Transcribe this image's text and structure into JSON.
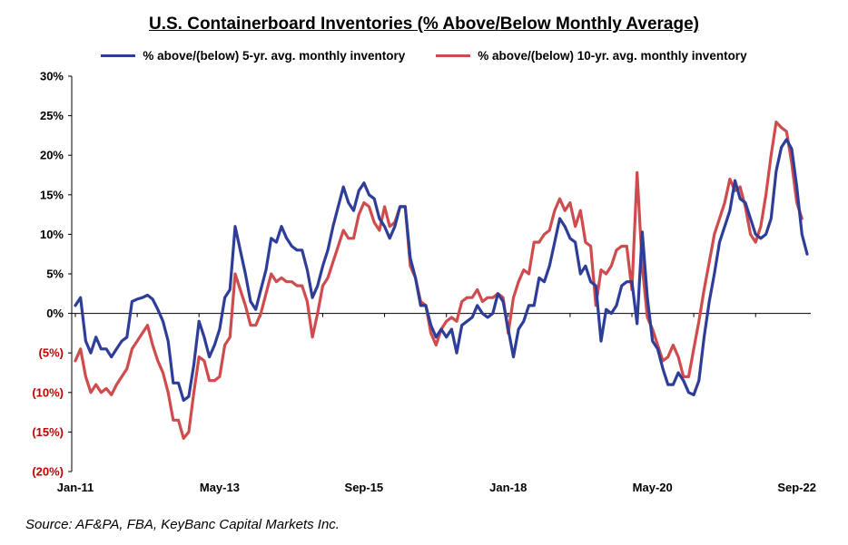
{
  "source": "Source: AF&PA, FBA, KeyBanc Capital Markets Inc.",
  "chart_data": {
    "type": "line",
    "title": "U.S. Containerboard Inventories (% Above/Below Monthly Average)",
    "xlabel": "",
    "ylabel": "",
    "ylim": [
      -20,
      30
    ],
    "yticks": [
      {
        "value": 30,
        "label": "30%"
      },
      {
        "value": 25,
        "label": "25%"
      },
      {
        "value": 20,
        "label": "20%"
      },
      {
        "value": 15,
        "label": "15%"
      },
      {
        "value": 10,
        "label": "10%"
      },
      {
        "value": 5,
        "label": "5%"
      },
      {
        "value": 0,
        "label": "0%"
      },
      {
        "value": -5,
        "label": "(5%)"
      },
      {
        "value": -10,
        "label": "(10%)"
      },
      {
        "value": -15,
        "label": "(15%)"
      },
      {
        "value": -20,
        "label": "(20%)"
      }
    ],
    "xticks": [
      {
        "index": 0,
        "label": "Jan-11"
      },
      {
        "index": 28,
        "label": "May-13"
      },
      {
        "index": 56,
        "label": "Sep-15"
      },
      {
        "index": 84,
        "label": "Jan-18"
      },
      {
        "index": 112,
        "label": "May-20"
      },
      {
        "index": 140,
        "label": "Sep-22"
      }
    ],
    "x_range": [
      "Jan-11",
      "Oct-22"
    ],
    "grid": false,
    "legend_position": "top",
    "negative_label_color": "#c00000",
    "series": [
      {
        "name": "% above/(below) 5-yr. avg. monthly inventory",
        "color": "#2e3d98",
        "values": [
          1,
          2,
          -3.5,
          -5,
          -3,
          -4.5,
          -4.5,
          -5.5,
          -4.5,
          -3.5,
          -3,
          1.5,
          1.8,
          2,
          2.3,
          1.8,
          0.5,
          -1,
          -3.5,
          -8.8,
          -8.8,
          -11,
          -10.5,
          -6.5,
          -1,
          -3,
          -5.5,
          -4,
          -2,
          2,
          3,
          11,
          8,
          5,
          1.5,
          0.5,
          3,
          5.5,
          9.5,
          9,
          11,
          9.5,
          8.5,
          8,
          8,
          5.5,
          2,
          3.5,
          6,
          8,
          11,
          13.5,
          16,
          14,
          13,
          15.5,
          16.5,
          15,
          14.5,
          12,
          11,
          9.5,
          11,
          13.5,
          13.5,
          7,
          4.5,
          1,
          1,
          -1.5,
          -3,
          -2,
          -3,
          -2,
          -5,
          -1.5,
          -1,
          -0.5,
          1,
          0,
          -0.5,
          0,
          2.5,
          1.5,
          -2,
          -5.5,
          -2,
          -1,
          1,
          1,
          4.5,
          4,
          6,
          9,
          12,
          11,
          9.5,
          9,
          5,
          6,
          4,
          3.5,
          -3.5,
          0.5,
          0,
          1,
          3.5,
          4,
          4,
          -1.3,
          10.3,
          2,
          -3.5,
          -4.5,
          -7,
          -9,
          -9,
          -7.5,
          -8.5,
          -10,
          -10.3,
          -8.5,
          -3,
          1.5,
          5,
          9,
          11,
          13,
          16.8,
          14.5,
          14,
          12,
          10,
          9.5,
          10,
          12,
          18,
          21,
          22,
          20.8,
          16,
          10,
          7.5
        ]
      },
      {
        "name": "% above/(below) 10-yr. avg. monthly inventory",
        "color": "#cf4b4d",
        "values": [
          -6,
          -4.5,
          -8,
          -10,
          -9,
          -10,
          -9.5,
          -10.3,
          -9,
          -8,
          -7,
          -4.5,
          -3.5,
          -2.5,
          -1.5,
          -4,
          -6,
          -7.5,
          -10,
          -13.5,
          -13.5,
          -15.8,
          -15,
          -10,
          -5.5,
          -6,
          -8.5,
          -8.5,
          -8,
          -4,
          -3,
          5,
          3,
          1,
          -1.5,
          -1.5,
          0,
          2.5,
          5,
          4,
          4.5,
          4,
          4,
          3.5,
          3.5,
          1.5,
          -3,
          0,
          3.5,
          4.5,
          6.5,
          8.5,
          10.5,
          9.5,
          9.5,
          12.5,
          14,
          13.5,
          11.5,
          10.5,
          13.5,
          11,
          11.5,
          13.5,
          13.5,
          6,
          4.5,
          1.5,
          1,
          -2.5,
          -4,
          -2,
          -1,
          -0.5,
          -1,
          1.5,
          2,
          2,
          3,
          1.5,
          2,
          2,
          2.5,
          2,
          -2.5,
          2,
          4,
          5.5,
          5,
          9,
          9,
          10,
          10.5,
          13,
          14.5,
          13,
          14,
          11,
          13,
          9,
          8.5,
          1,
          5.5,
          5,
          6,
          8,
          8.5,
          8.5,
          3,
          17.8,
          6,
          -0.5,
          -2,
          -4,
          -6,
          -5.5,
          -4,
          -5.5,
          -8,
          -8,
          -4.5,
          -1,
          3,
          6.5,
          10,
          12,
          14,
          17,
          15.5,
          16,
          13.5,
          10,
          9,
          11,
          15,
          20,
          24.2,
          23.5,
          23,
          19,
          14,
          12
        ]
      }
    ]
  }
}
